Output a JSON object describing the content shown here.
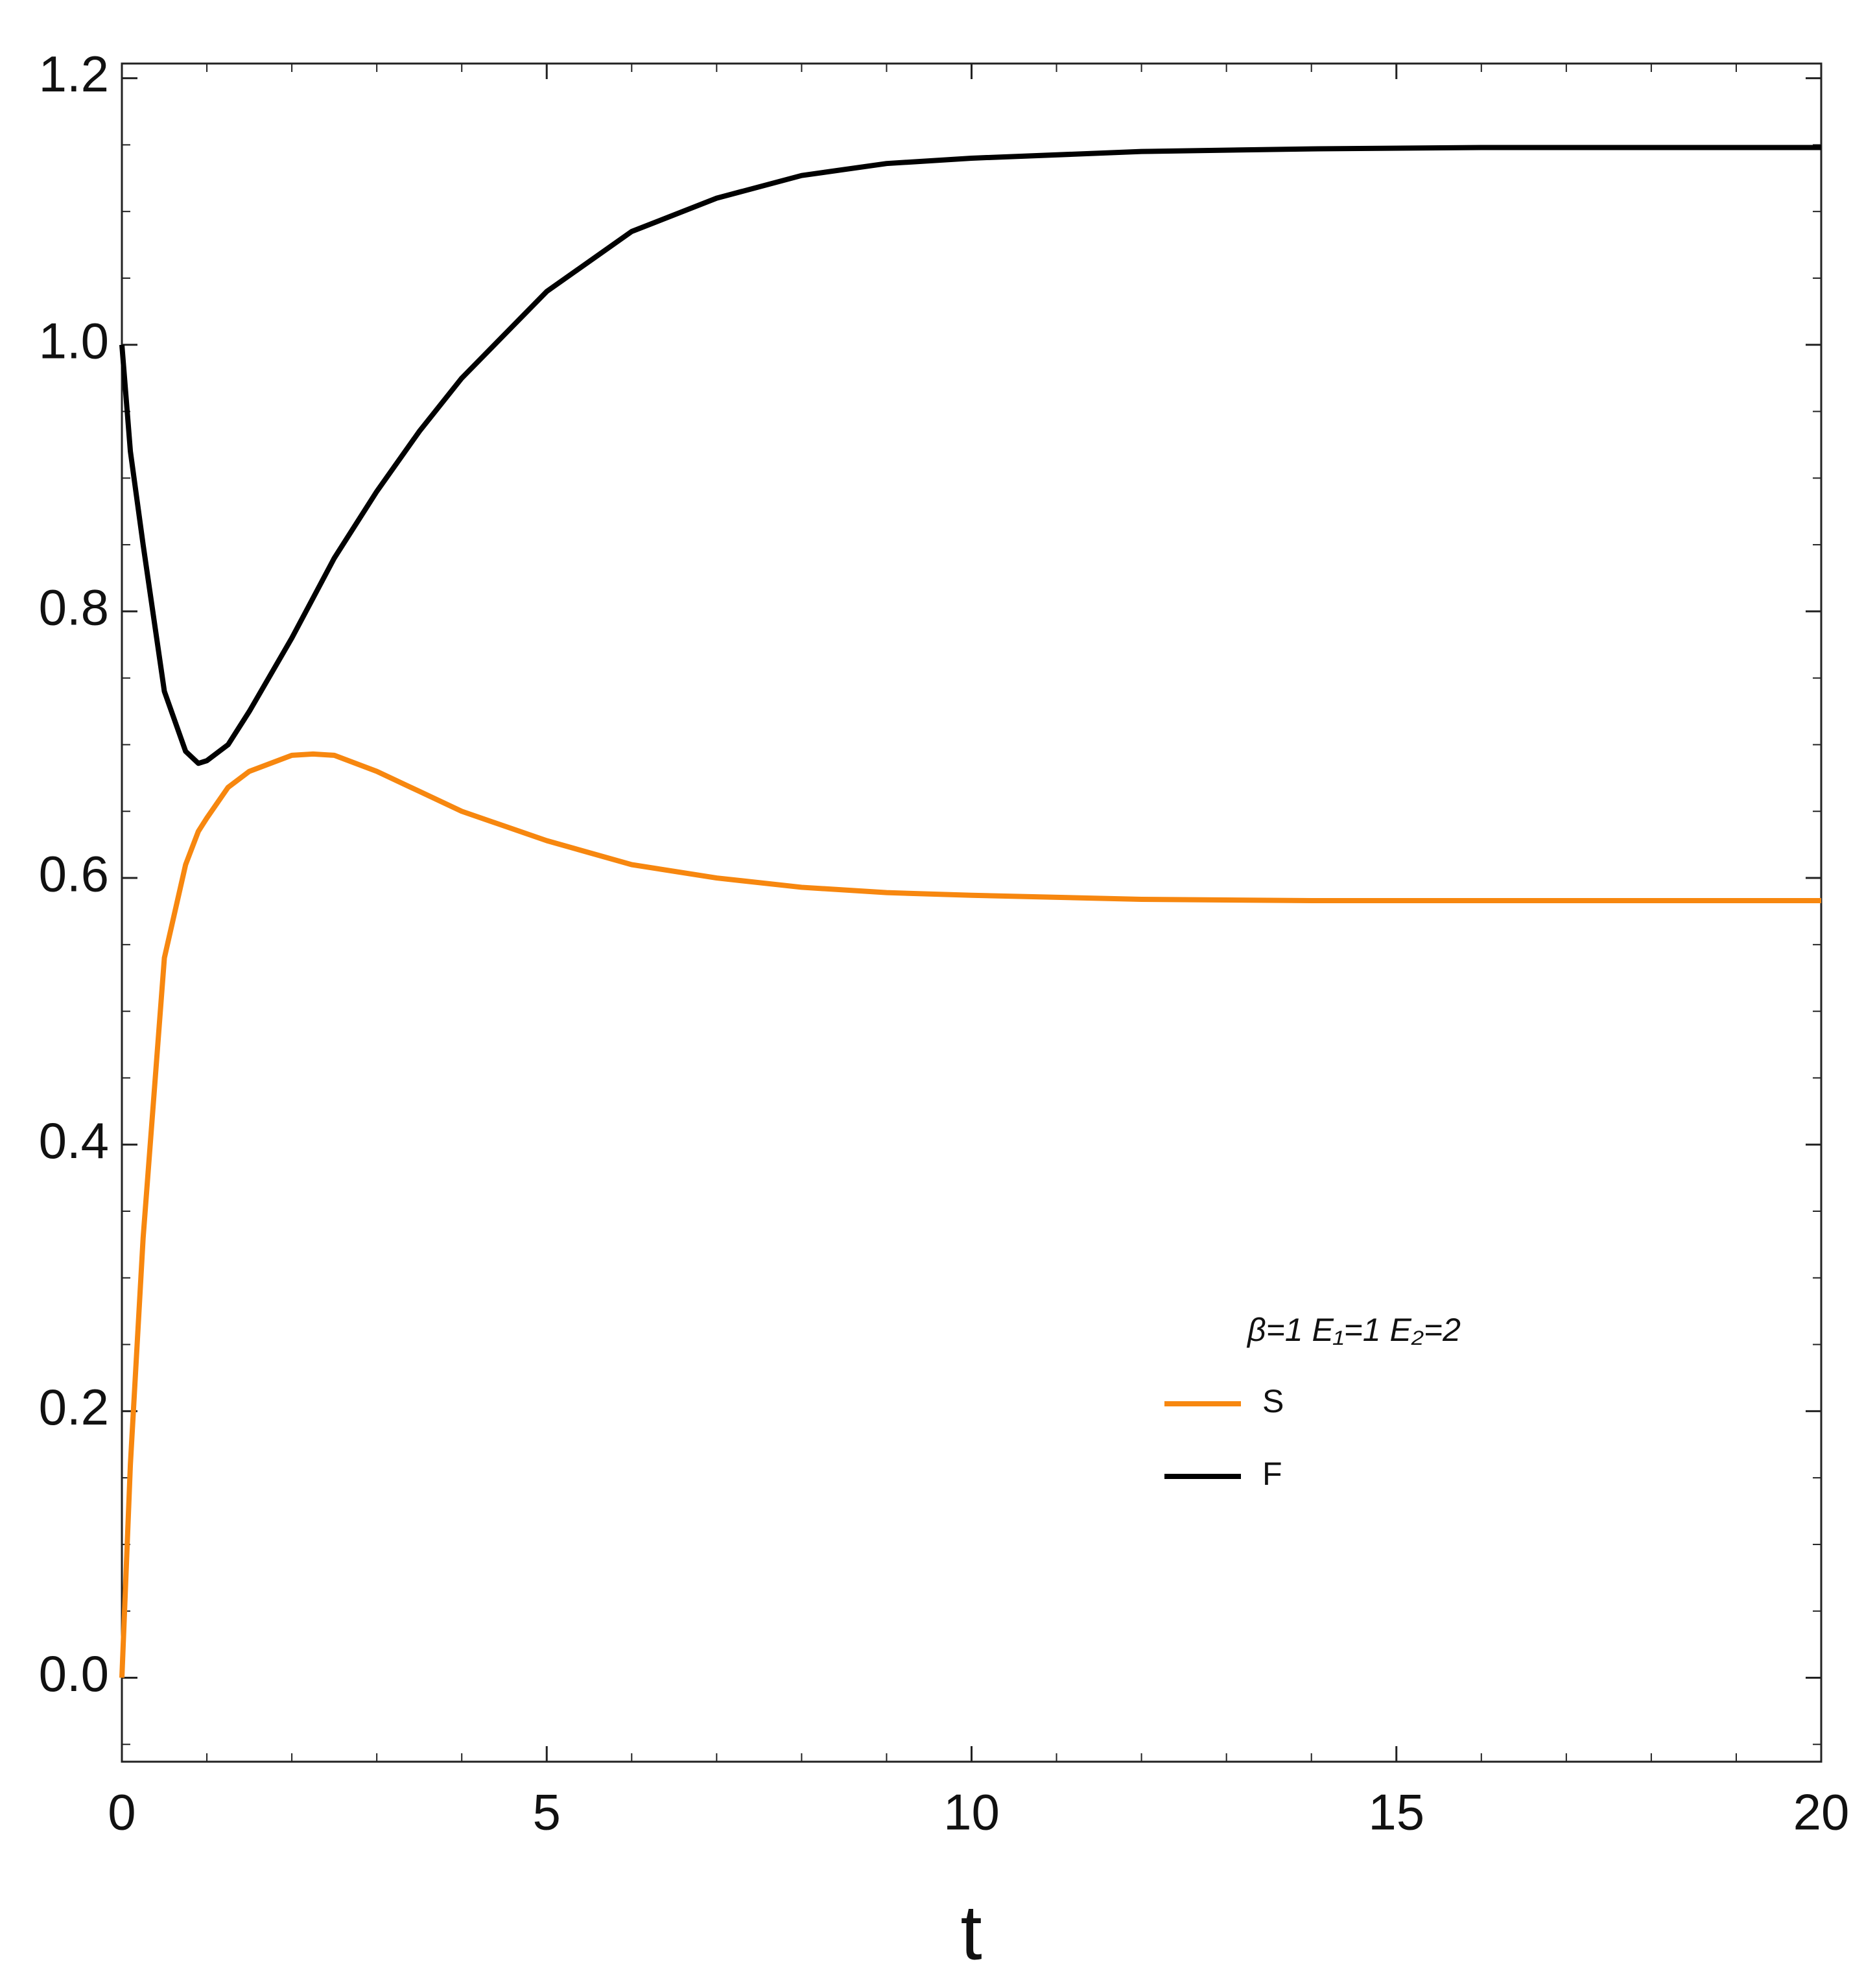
{
  "chart_data": {
    "type": "line",
    "xlabel": "t",
    "legend_title": "β=1  E₁=1 E₂=2",
    "legend": "lower right",
    "grid": false,
    "xlim": [
      0,
      20
    ],
    "ylim": [
      -0.063,
      1.211
    ],
    "xticks": [
      0,
      5,
      10,
      15,
      20
    ],
    "xminorticks": [
      1,
      2,
      3,
      4,
      6,
      7,
      8,
      9,
      11,
      12,
      13,
      14,
      16,
      17,
      18,
      19
    ],
    "yticks": [
      {
        "value": 0,
        "label": "0.0"
      },
      0.2,
      0.4,
      0.6,
      0.8,
      {
        "value": 1,
        "label": "1.0"
      },
      1.2
    ],
    "yminorticks": [
      -0.05,
      0.05,
      0.1,
      0.15,
      0.25,
      0.3,
      0.35,
      0.45,
      0.5,
      0.55,
      0.65,
      0.7,
      0.75,
      0.85,
      0.9,
      0.95,
      1.05,
      1.1,
      1.15
    ],
    "x": [
      0,
      0.1,
      0.25,
      0.5,
      0.75,
      0.9,
      1,
      1.25,
      1.5,
      2,
      2.25,
      2.5,
      3,
      3.5,
      4,
      5,
      6,
      7,
      8,
      9,
      10,
      12,
      14,
      16,
      18,
      20
    ],
    "series": [
      {
        "name": "S",
        "color": "#f7870f",
        "values": [
          0,
          0.16,
          0.33,
          0.54,
          0.61,
          0.635,
          0.645,
          0.668,
          0.68,
          0.692,
          0.693,
          0.692,
          0.68,
          0.665,
          0.65,
          0.628,
          0.61,
          0.6,
          0.593,
          0.589,
          0.587,
          0.584,
          0.583,
          0.583,
          0.583,
          0.583
        ]
      },
      {
        "name": "F",
        "color": "#000000",
        "values": [
          1.0,
          0.92,
          0.85,
          0.74,
          0.695,
          0.686,
          0.688,
          0.7,
          0.725,
          0.78,
          0.81,
          0.84,
          0.89,
          0.935,
          0.975,
          1.04,
          1.085,
          1.11,
          1.127,
          1.136,
          1.14,
          1.145,
          1.147,
          1.148,
          1.148,
          1.148
        ]
      }
    ]
  }
}
